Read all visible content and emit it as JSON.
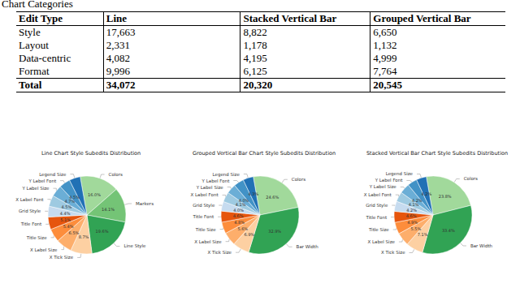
{
  "caption": "Chart Categories",
  "table": {
    "header": [
      "Edit Type",
      "Line",
      "Stacked Vertical Bar",
      "Grouped Vertical Bar"
    ],
    "rows": [
      [
        "Style",
        "17,663",
        "8,822",
        "6,650"
      ],
      [
        "Layout",
        "2,331",
        "1,178",
        "1,132"
      ],
      [
        "Data-centric",
        "4,082",
        "4,195",
        "4,999"
      ],
      [
        "Format",
        "9,996",
        "6,125",
        "7,764"
      ]
    ],
    "total": [
      "Total",
      "34,072",
      "20,320",
      "20,545"
    ]
  },
  "chart_data": [
    {
      "type": "pie",
      "title": "Line Chart Style Subedits Distribution",
      "data_labels": true,
      "categories": [
        "Colors",
        "Markers",
        "Line Style",
        "X Tick Size",
        "X Label Size",
        "Title Size",
        "Title Font",
        "Grid Style",
        "X Label Font",
        "Y Label Size",
        "Y Label Font",
        "Legend Size"
      ],
      "values": [
        16.0,
        14.1,
        19.6,
        8.7,
        6.5,
        5.4,
        5.1,
        4.4,
        4.5,
        4.7,
        4.5,
        4.5
      ],
      "value_labels": [
        "16.0%",
        "14.1%",
        "19.6%",
        "8.7%",
        "6.5%",
        "5.4%",
        "5.1%",
        "4.4%",
        "4.5%",
        "4.7%",
        "4.5%",
        "4.5%"
      ],
      "colors": [
        "#a1d99b",
        "#74c476",
        "#31a354",
        "#fdd0a2",
        "#fdae6b",
        "#fd8d3c",
        "#e6550d",
        "#c6dbef",
        "#9ecae1",
        "#6baed6",
        "#4292c6",
        "#2171b5"
      ]
    },
    {
      "type": "pie",
      "title": "Grouped Vertical Bar Chart Style Subedits Distribution",
      "data_labels": true,
      "categories": [
        "Colors",
        "Bar Width",
        "X Tick Size",
        "X Label Size",
        "Title Size",
        "Title Font",
        "Grid Style",
        "X Label Font",
        "Y Label Size",
        "Y Label Font",
        "Legend Size"
      ],
      "values": [
        24.6,
        32.9,
        6.9,
        5.6,
        4.8,
        4.6,
        4.0,
        4.1,
        4.0,
        4.2,
        4.3
      ],
      "value_labels": [
        "24.6%",
        "32.9%",
        "6.9%",
        "5.6%",
        "4.8%",
        "4.6%",
        "4.0%",
        "4.1%",
        "4.0%",
        "4.2%",
        "4.3%"
      ],
      "colors": [
        "#a1d99b",
        "#31a354",
        "#fdd0a2",
        "#fdae6b",
        "#fd8d3c",
        "#e6550d",
        "#c6dbef",
        "#9ecae1",
        "#6baed6",
        "#4292c6",
        "#2171b5"
      ]
    },
    {
      "type": "pie",
      "title": "Stacked Vertical Bar Chart Style Subedits Distribution",
      "data_labels": true,
      "categories": [
        "Colors",
        "Bar Width",
        "X Tick Size",
        "X Label Size",
        "Title Size",
        "Title Font",
        "Grid Style",
        "X Label Font",
        "Y Label Size",
        "Y Label Font",
        "Legend Size"
      ],
      "values": [
        23.8,
        33.4,
        7.1,
        5.5,
        4.9,
        4.6,
        4.2,
        4.1,
        4.2,
        4.0,
        4.2
      ],
      "value_labels": [
        "23.8%",
        "33.4%",
        "7.1%",
        "5.5%",
        "4.9%",
        "4.6%",
        "4.2%",
        "4.1%",
        "4.2%",
        "4.0%",
        "4.2%"
      ],
      "colors": [
        "#a1d99b",
        "#31a354",
        "#fdd0a2",
        "#fdae6b",
        "#fd8d3c",
        "#e6550d",
        "#c6dbef",
        "#9ecae1",
        "#6baed6",
        "#4292c6",
        "#2171b5"
      ]
    }
  ]
}
